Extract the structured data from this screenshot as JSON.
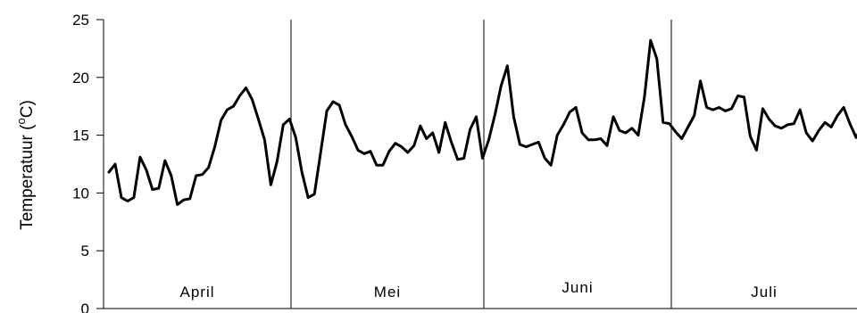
{
  "chart_data": {
    "type": "line",
    "title": "",
    "xlabel": "",
    "ylabel_prefix": "Temperatuur (",
    "ylabel_sup": "o",
    "ylabel_suffix": "C)",
    "ylim": [
      0,
      25
    ],
    "yticks": [
      "0",
      "5",
      "10",
      "15",
      "20",
      "25"
    ],
    "grid": false,
    "months": [
      "April",
      "Mei",
      "Juni",
      "Juli"
    ],
    "month_lengths": [
      30,
      31,
      30,
      31
    ],
    "series": [
      {
        "color": "#000000",
        "values": [
          11.8,
          12.5,
          9.6,
          9.3,
          9.6,
          13.1,
          12.0,
          10.3,
          10.4,
          12.8,
          11.5,
          9.0,
          9.4,
          9.5,
          11.5,
          11.6,
          12.2,
          14.0,
          16.3,
          17.2,
          17.5,
          18.4,
          19.1,
          18.1,
          16.4,
          14.6,
          10.7,
          12.7,
          15.9,
          16.4,
          14.8,
          11.8,
          9.6,
          9.9,
          13.5,
          17.1,
          17.9,
          17.6,
          15.9,
          14.9,
          13.7,
          13.4,
          13.6,
          12.4,
          12.4,
          13.6,
          14.3,
          14.0,
          13.5,
          14.1,
          15.8,
          14.7,
          15.2,
          13.5,
          16.1,
          14.4,
          12.9,
          13.0,
          15.5,
          16.6,
          13.0,
          14.6,
          16.8,
          19.3,
          21.0,
          16.6,
          14.2,
          14.0,
          14.2,
          14.4,
          13.0,
          12.4,
          15.0,
          15.9,
          17.0,
          17.4,
          15.2,
          14.6,
          14.6,
          14.7,
          14.1,
          16.6,
          15.4,
          15.2,
          15.6,
          15.0,
          18.3,
          23.2,
          21.6,
          16.1,
          16.0,
          15.3,
          14.7,
          15.7,
          16.7,
          19.7,
          17.4,
          17.2,
          17.4,
          17.1,
          17.3,
          18.4,
          18.3,
          14.9,
          13.7,
          17.3,
          16.4,
          15.8,
          15.6,
          15.9,
          16.0,
          17.2,
          15.2,
          14.5,
          15.4,
          16.1,
          15.7,
          16.7,
          17.4,
          16.0,
          14.8,
          15.8
        ]
      }
    ]
  }
}
